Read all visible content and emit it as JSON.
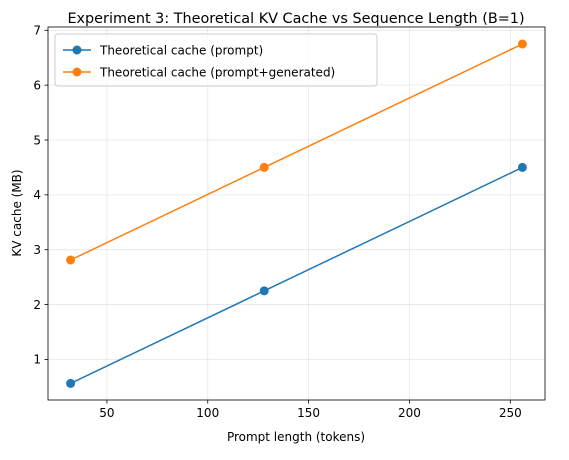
{
  "chart_data": {
    "type": "line",
    "title": "Experiment 3: Theoretical KV Cache vs Sequence Length (B=1)",
    "xlabel": "Prompt length (tokens)",
    "ylabel": "KV cache (MB)",
    "xlim": [
      20.8,
      267.2
    ],
    "ylim": [
      0.26,
      7.06
    ],
    "xticks": [
      50,
      100,
      150,
      200,
      250
    ],
    "yticks": [
      1,
      2,
      3,
      4,
      5,
      6,
      7
    ],
    "grid": true,
    "legend_position": "top-left",
    "x": [
      32,
      128,
      256
    ],
    "series": [
      {
        "name": "Theoretical cache (prompt)",
        "color": "#1f77b4",
        "values": [
          0.5625,
          2.25,
          4.5
        ]
      },
      {
        "name": "Theoretical cache (prompt+generated)",
        "color": "#ff7f0e",
        "values": [
          2.8125,
          4.5,
          6.75
        ]
      }
    ]
  }
}
